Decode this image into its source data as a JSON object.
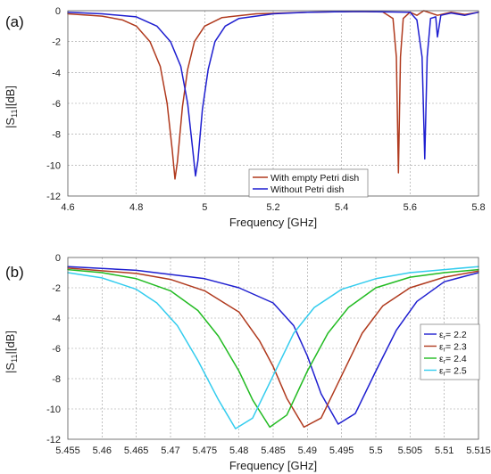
{
  "chart_data": [
    {
      "panel_label": "(a)",
      "type": "line",
      "xlabel": "Frequency [GHz]",
      "ylabel": "|S",
      "ylabel_sub": "11",
      "ylabel_tail": "|[dB]",
      "xlim": [
        4.6,
        5.8
      ],
      "ylim": [
        -12,
        0
      ],
      "xticks": [
        4.6,
        4.8,
        5.0,
        5.2,
        5.4,
        5.6,
        5.8
      ],
      "xtick_labels": [
        "4.6",
        "4.8",
        "5",
        "5.2",
        "5.4",
        "5.6",
        "5.8"
      ],
      "yticks": [
        0,
        -2,
        -4,
        -6,
        -8,
        -10,
        -12
      ],
      "ytick_labels": [
        "0",
        "-2",
        "-4",
        "-6",
        "-8",
        "-10",
        "-12"
      ],
      "grid": true,
      "legend_position": "bottom-center",
      "series": [
        {
          "name": "With empty Petri dish",
          "color": "#b03a1e",
          "points": [
            [
              4.6,
              -0.2
            ],
            [
              4.7,
              -0.35
            ],
            [
              4.76,
              -0.6
            ],
            [
              4.8,
              -1.0
            ],
            [
              4.84,
              -2.0
            ],
            [
              4.87,
              -3.6
            ],
            [
              4.89,
              -6.0
            ],
            [
              4.905,
              -9.0
            ],
            [
              4.913,
              -10.9
            ],
            [
              4.92,
              -9.8
            ],
            [
              4.935,
              -6.2
            ],
            [
              4.95,
              -3.8
            ],
            [
              4.97,
              -2.0
            ],
            [
              5.0,
              -1.0
            ],
            [
              5.05,
              -0.45
            ],
            [
              5.15,
              -0.2
            ],
            [
              5.3,
              -0.1
            ],
            [
              5.45,
              -0.05
            ],
            [
              5.52,
              -0.08
            ],
            [
              5.55,
              -0.5
            ],
            [
              5.56,
              -3.0
            ],
            [
              5.566,
              -10.5
            ],
            [
              5.572,
              -3.0
            ],
            [
              5.58,
              -0.5
            ],
            [
              5.6,
              -0.1
            ],
            [
              5.62,
              -0.3
            ],
            [
              5.64,
              0.0
            ],
            [
              5.68,
              -0.3
            ],
            [
              5.72,
              -0.1
            ],
            [
              5.76,
              -0.25
            ],
            [
              5.8,
              -0.1
            ]
          ]
        },
        {
          "name": "Without Petri dish",
          "color": "#1f1fd0",
          "points": [
            [
              4.6,
              -0.1
            ],
            [
              4.7,
              -0.2
            ],
            [
              4.8,
              -0.4
            ],
            [
              4.86,
              -1.0
            ],
            [
              4.9,
              -2.0
            ],
            [
              4.93,
              -3.6
            ],
            [
              4.95,
              -6.0
            ],
            [
              4.965,
              -9.0
            ],
            [
              4.973,
              -10.7
            ],
            [
              4.98,
              -9.7
            ],
            [
              4.993,
              -6.4
            ],
            [
              5.01,
              -3.8
            ],
            [
              5.03,
              -2.0
            ],
            [
              5.06,
              -1.0
            ],
            [
              5.1,
              -0.5
            ],
            [
              5.2,
              -0.2
            ],
            [
              5.3,
              -0.1
            ],
            [
              5.45,
              -0.05
            ],
            [
              5.6,
              -0.1
            ],
            [
              5.62,
              -0.6
            ],
            [
              5.635,
              -3.0
            ],
            [
              5.643,
              -9.6
            ],
            [
              5.65,
              -3.0
            ],
            [
              5.66,
              -0.5
            ],
            [
              5.675,
              -0.4
            ],
            [
              5.68,
              -1.7
            ],
            [
              5.69,
              -0.3
            ],
            [
              5.72,
              -0.15
            ],
            [
              5.76,
              -0.3
            ],
            [
              5.8,
              -0.1
            ]
          ]
        }
      ]
    },
    {
      "panel_label": "(b)",
      "type": "line",
      "xlabel": "Frequency [GHz]",
      "ylabel": "|S",
      "ylabel_sub": "11",
      "ylabel_tail": "|[dB]",
      "xlim": [
        5.455,
        5.515
      ],
      "ylim": [
        -12,
        0
      ],
      "xticks": [
        5.455,
        5.46,
        5.465,
        5.47,
        5.475,
        5.48,
        5.485,
        5.49,
        5.495,
        5.5,
        5.505,
        5.51,
        5.515
      ],
      "xtick_labels": [
        "5.455",
        "5.46",
        "5.465",
        "5.47",
        "5.475",
        "5.48",
        "5.485",
        "5.49",
        "5.495",
        "5.5",
        "5.505",
        "5.51",
        "5.515"
      ],
      "yticks": [
        0,
        -2,
        -4,
        -6,
        -8,
        -10,
        -12
      ],
      "ytick_labels": [
        "0",
        "-2",
        "-4",
        "-6",
        "-8",
        "-10",
        "-12"
      ],
      "grid": true,
      "legend_position": "right",
      "series": [
        {
          "name": "εr= 2.2",
          "label_main": "ε",
          "label_sub": "r",
          "label_tail": "= 2.2",
          "color": "#1f1fd0",
          "points": [
            [
              5.455,
              -0.6
            ],
            [
              5.465,
              -0.85
            ],
            [
              5.475,
              -1.4
            ],
            [
              5.48,
              -2.0
            ],
            [
              5.485,
              -3.0
            ],
            [
              5.488,
              -4.5
            ],
            [
              5.49,
              -6.5
            ],
            [
              5.492,
              -9.0
            ],
            [
              5.4945,
              -11.0
            ],
            [
              5.497,
              -10.3
            ],
            [
              5.5,
              -7.5
            ],
            [
              5.503,
              -4.8
            ],
            [
              5.506,
              -2.9
            ],
            [
              5.51,
              -1.6
            ],
            [
              5.515,
              -1.0
            ]
          ]
        },
        {
          "name": "εr= 2.3",
          "label_main": "ε",
          "label_sub": "r",
          "label_tail": "= 2.3",
          "color": "#b03a1e",
          "points": [
            [
              5.455,
              -0.7
            ],
            [
              5.465,
              -1.05
            ],
            [
              5.47,
              -1.45
            ],
            [
              5.475,
              -2.2
            ],
            [
              5.48,
              -3.6
            ],
            [
              5.483,
              -5.5
            ],
            [
              5.485,
              -7.2
            ],
            [
              5.487,
              -9.3
            ],
            [
              5.4895,
              -11.2
            ],
            [
              5.492,
              -10.6
            ],
            [
              5.495,
              -7.8
            ],
            [
              5.498,
              -5.0
            ],
            [
              5.501,
              -3.2
            ],
            [
              5.505,
              -2.0
            ],
            [
              5.51,
              -1.3
            ],
            [
              5.515,
              -0.9
            ]
          ]
        },
        {
          "name": "εr= 2.4",
          "label_main": "ε",
          "label_sub": "r",
          "label_tail": "= 2.4",
          "color": "#22bb22",
          "points": [
            [
              5.455,
              -0.8
            ],
            [
              5.46,
              -1.0
            ],
            [
              5.465,
              -1.4
            ],
            [
              5.47,
              -2.2
            ],
            [
              5.474,
              -3.5
            ],
            [
              5.477,
              -5.2
            ],
            [
              5.48,
              -7.5
            ],
            [
              5.482,
              -9.4
            ],
            [
              5.4845,
              -11.2
            ],
            [
              5.487,
              -10.4
            ],
            [
              5.49,
              -7.5
            ],
            [
              5.493,
              -5.0
            ],
            [
              5.496,
              -3.3
            ],
            [
              5.5,
              -2.0
            ],
            [
              5.505,
              -1.3
            ],
            [
              5.51,
              -1.0
            ],
            [
              5.515,
              -0.8
            ]
          ]
        },
        {
          "name": "εr= 2.5",
          "label_main": "ε",
          "label_sub": "r",
          "label_tail": "= 2.5",
          "color": "#33ccee",
          "points": [
            [
              5.455,
              -1.0
            ],
            [
              5.46,
              -1.35
            ],
            [
              5.465,
              -2.1
            ],
            [
              5.468,
              -3.0
            ],
            [
              5.471,
              -4.5
            ],
            [
              5.474,
              -6.8
            ],
            [
              5.477,
              -9.4
            ],
            [
              5.4795,
              -11.3
            ],
            [
              5.482,
              -10.6
            ],
            [
              5.485,
              -7.8
            ],
            [
              5.488,
              -5.0
            ],
            [
              5.491,
              -3.3
            ],
            [
              5.495,
              -2.1
            ],
            [
              5.5,
              -1.4
            ],
            [
              5.505,
              -1.0
            ],
            [
              5.51,
              -0.8
            ],
            [
              5.515,
              -0.6
            ]
          ]
        }
      ]
    }
  ]
}
